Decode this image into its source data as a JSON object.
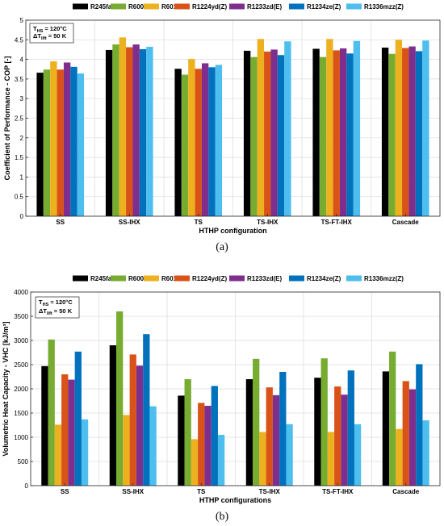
{
  "chart_data": [
    {
      "type": "bar",
      "caption": "(a)",
      "xlabel": "HTHP configuration",
      "ylabel": "Coefficient of Performance - COP [-]",
      "ylim": [
        0,
        5
      ],
      "yticks": [
        "0",
        "0.5",
        "1",
        "1.5",
        "2",
        "2.5",
        "3",
        "3.5",
        "4",
        "4.5",
        "5"
      ],
      "ytick_values": [
        0,
        0.5,
        1,
        1.5,
        2,
        2.5,
        3,
        3.5,
        4,
        4.5,
        5
      ],
      "grid": true,
      "legend_position": "top",
      "annotation": {
        "line1_main": "T",
        "line1_sub": "HS",
        "line1_rest": " = 120°C",
        "line2_main": "ΔT",
        "line2_sub": "lift",
        "line2_rest": " = 50 K"
      },
      "categories": [
        "SS",
        "SS-IHX",
        "TS",
        "TS-IHX",
        "TS-FT-IHX",
        "Cascade"
      ],
      "series": [
        {
          "name": "R245fa",
          "color": "#000000",
          "values": [
            3.66,
            4.24,
            3.76,
            4.22,
            4.27,
            4.3
          ]
        },
        {
          "name": "R600",
          "color": "#77ac30",
          "values": [
            3.74,
            4.38,
            3.61,
            4.06,
            4.06,
            4.14
          ]
        },
        {
          "name": "R601",
          "color": "#edb120",
          "values": [
            3.95,
            4.56,
            4.01,
            4.52,
            4.52,
            4.5
          ]
        },
        {
          "name": "R1224yd(Z)",
          "color": "#d95319",
          "values": [
            3.74,
            4.31,
            3.76,
            4.2,
            4.23,
            4.29
          ]
        },
        {
          "name": "R1233zd(E)",
          "color": "#7e2f8e",
          "values": [
            3.92,
            4.38,
            3.9,
            4.25,
            4.28,
            4.33
          ]
        },
        {
          "name": "R1234ze(Z)",
          "color": "#0072bd",
          "values": [
            3.81,
            4.26,
            3.8,
            4.11,
            4.15,
            4.21
          ]
        },
        {
          "name": "R1336mzz(Z)",
          "color": "#4dbeee",
          "values": [
            3.64,
            4.32,
            3.86,
            4.46,
            4.47,
            4.48
          ]
        }
      ]
    },
    {
      "type": "bar",
      "caption": "(b)",
      "xlabel": "HTHP configurations",
      "ylabel": "Volumetric Heat Capacity - VHC [kJ/m³]",
      "ylim": [
        0,
        4000
      ],
      "yticks": [
        "0",
        "500",
        "1000",
        "1500",
        "2000",
        "2500",
        "3000",
        "3500",
        "4000"
      ],
      "ytick_values": [
        0,
        500,
        1000,
        1500,
        2000,
        2500,
        3000,
        3500,
        4000
      ],
      "grid": true,
      "legend_position": "top",
      "annotation": {
        "line1_main": "T",
        "line1_sub": "HS",
        "line1_rest": " = 120°C",
        "line2_main": "ΔT",
        "line2_sub": "lift",
        "line2_rest": " = 50 K"
      },
      "categories": [
        "SS",
        "SS-IHX",
        "TS",
        "TS-IHX",
        "TS-FT-IHX",
        "Cascade"
      ],
      "series": [
        {
          "name": "R245fa",
          "color": "#000000",
          "values": [
            2470,
            2900,
            1860,
            2200,
            2230,
            2360
          ]
        },
        {
          "name": "R600",
          "color": "#77ac30",
          "values": [
            3020,
            3600,
            2200,
            2620,
            2630,
            2770
          ]
        },
        {
          "name": "R601",
          "color": "#edb120",
          "values": [
            1260,
            1460,
            960,
            1110,
            1110,
            1170
          ]
        },
        {
          "name": "R1224yd(Z)",
          "color": "#d95319",
          "values": [
            2300,
            2710,
            1710,
            2030,
            2050,
            2160
          ]
        },
        {
          "name": "R1233zd(E)",
          "color": "#7e2f8e",
          "values": [
            2190,
            2480,
            1650,
            1870,
            1880,
            1990
          ]
        },
        {
          "name": "R1234ze(Z)",
          "color": "#0072bd",
          "values": [
            2770,
            3130,
            2060,
            2350,
            2380,
            2510
          ]
        },
        {
          "name": "R1336mzz(Z)",
          "color": "#4dbeee",
          "values": [
            1370,
            1640,
            1050,
            1270,
            1270,
            1350
          ]
        }
      ]
    }
  ]
}
